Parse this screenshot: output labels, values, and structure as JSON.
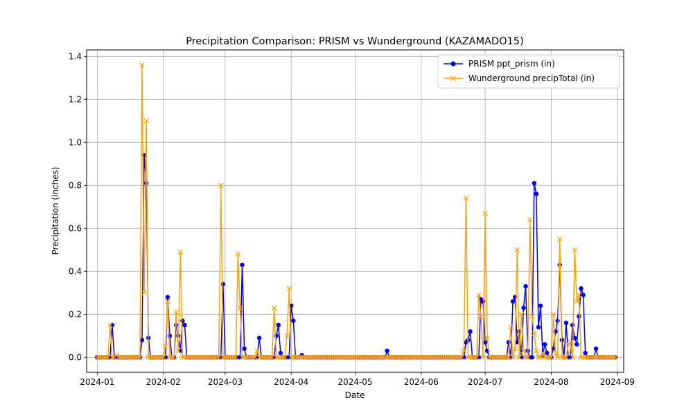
{
  "chart_data": {
    "type": "line",
    "title": "Precipitation Comparison: PRISM vs Wunderground (KAZAMADO15)",
    "xlabel": "Date",
    "ylabel": "Precipitation (inches)",
    "xlim": [
      "2023-12-27",
      "2024-09-04"
    ],
    "ylim": [
      -0.07,
      1.43
    ],
    "x_ticks": [
      "2024-01-01",
      "2024-02-01",
      "2024-03-01",
      "2024-04-01",
      "2024-05-01",
      "2024-06-01",
      "2024-07-01",
      "2024-08-01",
      "2024-09-01"
    ],
    "x_tick_labels": [
      "2024-01",
      "2024-02",
      "2024-03",
      "2024-04",
      "2024-05",
      "2024-06",
      "2024-07",
      "2024-08",
      "2024-09"
    ],
    "y_ticks": [
      0.0,
      0.2,
      0.4,
      0.6,
      0.8,
      1.0,
      1.2,
      1.4
    ],
    "y_tick_labels": [
      "0.0",
      "0.2",
      "0.4",
      "0.6",
      "0.8",
      "1.0",
      "1.2",
      "1.4"
    ],
    "grid": true,
    "legend": "top-right",
    "series": [
      {
        "name": "PRISM ppt_prism (in)",
        "color": "#0000ff",
        "marker": "circle",
        "points": [
          [
            "2024-01-07",
            0.0
          ],
          [
            "2024-01-08",
            0.15
          ],
          [
            "2024-01-09",
            0.0
          ],
          [
            "2024-01-21",
            0.0
          ],
          [
            "2024-01-22",
            0.08
          ],
          [
            "2024-01-23",
            0.94
          ],
          [
            "2024-01-24",
            0.81
          ],
          [
            "2024-01-25",
            0.09
          ],
          [
            "2024-01-26",
            0.0
          ],
          [
            "2024-02-02",
            0.0
          ],
          [
            "2024-02-03",
            0.28
          ],
          [
            "2024-02-04",
            0.1
          ],
          [
            "2024-02-05",
            0.0
          ],
          [
            "2024-02-06",
            0.0
          ],
          [
            "2024-02-07",
            0.15
          ],
          [
            "2024-02-08",
            0.1
          ],
          [
            "2024-02-09",
            0.03
          ],
          [
            "2024-02-10",
            0.17
          ],
          [
            "2024-02-11",
            0.15
          ],
          [
            "2024-02-12",
            0.0
          ],
          [
            "2024-02-27",
            0.0
          ],
          [
            "2024-02-28",
            0.0
          ],
          [
            "2024-02-29",
            0.34
          ],
          [
            "2024-03-01",
            0.0
          ],
          [
            "2024-03-07",
            0.0
          ],
          [
            "2024-03-08",
            0.0
          ],
          [
            "2024-03-09",
            0.43
          ],
          [
            "2024-03-10",
            0.04
          ],
          [
            "2024-03-11",
            0.0
          ],
          [
            "2024-03-16",
            0.0
          ],
          [
            "2024-03-17",
            0.09
          ],
          [
            "2024-03-18",
            0.0
          ],
          [
            "2024-03-24",
            0.0
          ],
          [
            "2024-03-25",
            0.1
          ],
          [
            "2024-03-26",
            0.15
          ],
          [
            "2024-03-27",
            0.02
          ],
          [
            "2024-03-28",
            0.0
          ],
          [
            "2024-03-31",
            0.0
          ],
          [
            "2024-04-01",
            0.24
          ],
          [
            "2024-04-02",
            0.17
          ],
          [
            "2024-04-03",
            0.0
          ],
          [
            "2024-04-05",
            0.0
          ],
          [
            "2024-04-06",
            0.01
          ],
          [
            "2024-04-07",
            0.0
          ],
          [
            "2024-05-15",
            0.0
          ],
          [
            "2024-05-16",
            0.03
          ],
          [
            "2024-05-17",
            0.0
          ],
          [
            "2024-06-21",
            0.0
          ],
          [
            "2024-06-22",
            0.07
          ],
          [
            "2024-06-23",
            0.08
          ],
          [
            "2024-06-24",
            0.12
          ],
          [
            "2024-06-25",
            0.0
          ],
          [
            "2024-06-28",
            0.0
          ],
          [
            "2024-06-29",
            0.27
          ],
          [
            "2024-06-30",
            0.26
          ],
          [
            "2024-07-01",
            0.07
          ],
          [
            "2024-07-02",
            0.03
          ],
          [
            "2024-07-03",
            0.0
          ],
          [
            "2024-07-11",
            0.0
          ],
          [
            "2024-07-12",
            0.07
          ],
          [
            "2024-07-13",
            0.0
          ],
          [
            "2024-07-14",
            0.26
          ],
          [
            "2024-07-15",
            0.28
          ],
          [
            "2024-07-16",
            0.07
          ],
          [
            "2024-07-17",
            0.12
          ],
          [
            "2024-07-18",
            0.0
          ],
          [
            "2024-07-19",
            0.23
          ],
          [
            "2024-07-20",
            0.33
          ],
          [
            "2024-07-21",
            0.03
          ],
          [
            "2024-07-22",
            0.0
          ],
          [
            "2024-07-23",
            0.0
          ],
          [
            "2024-07-24",
            0.81
          ],
          [
            "2024-07-25",
            0.76
          ],
          [
            "2024-07-26",
            0.14
          ],
          [
            "2024-07-27",
            0.24
          ],
          [
            "2024-07-28",
            0.01
          ],
          [
            "2024-07-29",
            0.06
          ],
          [
            "2024-07-30",
            0.02
          ],
          [
            "2024-07-31",
            0.0
          ],
          [
            "2024-08-02",
            0.04
          ],
          [
            "2024-08-03",
            0.12
          ],
          [
            "2024-08-04",
            0.17
          ],
          [
            "2024-08-05",
            0.43
          ],
          [
            "2024-08-06",
            0.08
          ],
          [
            "2024-08-07",
            0.0
          ],
          [
            "2024-08-08",
            0.16
          ],
          [
            "2024-08-09",
            0.0
          ],
          [
            "2024-08-10",
            0.0
          ],
          [
            "2024-08-11",
            0.15
          ],
          [
            "2024-08-12",
            0.09
          ],
          [
            "2024-08-13",
            0.06
          ],
          [
            "2024-08-14",
            0.19
          ],
          [
            "2024-08-15",
            0.32
          ],
          [
            "2024-08-16",
            0.29
          ],
          [
            "2024-08-17",
            0.02
          ],
          [
            "2024-08-18",
            0.0
          ],
          [
            "2024-08-21",
            0.0
          ],
          [
            "2024-08-22",
            0.04
          ],
          [
            "2024-08-23",
            0.0
          ],
          [
            "2024-08-30",
            0.0
          ],
          [
            "2024-08-31",
            0.0
          ]
        ]
      },
      {
        "name": "Wunderground precipTotal (in)",
        "color": "#ffa500",
        "marker": "x",
        "points": [
          [
            "2024-01-06",
            0.0
          ],
          [
            "2024-01-07",
            0.15
          ],
          [
            "2024-01-08",
            0.0
          ],
          [
            "2024-01-09",
            0.0
          ],
          [
            "2024-01-10",
            0.01
          ],
          [
            "2024-01-11",
            0.0
          ],
          [
            "2024-01-21",
            0.0
          ],
          [
            "2024-01-22",
            1.36
          ],
          [
            "2024-01-23",
            0.3
          ],
          [
            "2024-01-24",
            1.1
          ],
          [
            "2024-01-25",
            0.0
          ],
          [
            "2024-02-01",
            0.0
          ],
          [
            "2024-02-02",
            0.05
          ],
          [
            "2024-02-03",
            0.26
          ],
          [
            "2024-02-04",
            0.0
          ],
          [
            "2024-02-05",
            0.0
          ],
          [
            "2024-02-06",
            0.0
          ],
          [
            "2024-02-07",
            0.21
          ],
          [
            "2024-02-08",
            0.03
          ],
          [
            "2024-02-09",
            0.49
          ],
          [
            "2024-02-10",
            0.0
          ],
          [
            "2024-02-26",
            0.0
          ],
          [
            "2024-02-27",
            0.0
          ],
          [
            "2024-02-28",
            0.8
          ],
          [
            "2024-02-29",
            0.0
          ],
          [
            "2024-03-05",
            0.0
          ],
          [
            "2024-03-06",
            0.0
          ],
          [
            "2024-03-07",
            0.48
          ],
          [
            "2024-03-08",
            0.23
          ],
          [
            "2024-03-09",
            0.0
          ],
          [
            "2024-03-15",
            0.0
          ],
          [
            "2024-03-16",
            0.03
          ],
          [
            "2024-03-17",
            0.0
          ],
          [
            "2024-03-23",
            0.0
          ],
          [
            "2024-03-24",
            0.23
          ],
          [
            "2024-03-25",
            0.0
          ],
          [
            "2024-03-29",
            0.0
          ],
          [
            "2024-03-30",
            0.1
          ],
          [
            "2024-03-31",
            0.32
          ],
          [
            "2024-04-01",
            0.0
          ],
          [
            "2024-06-20",
            0.0
          ],
          [
            "2024-06-21",
            0.03
          ],
          [
            "2024-06-22",
            0.74
          ],
          [
            "2024-06-23",
            0.0
          ],
          [
            "2024-06-24",
            0.0
          ],
          [
            "2024-06-27",
            0.0
          ],
          [
            "2024-06-28",
            0.29
          ],
          [
            "2024-06-29",
            0.19
          ],
          [
            "2024-06-30",
            0.0
          ],
          [
            "2024-07-01",
            0.67
          ],
          [
            "2024-07-02",
            0.09
          ],
          [
            "2024-07-03",
            0.0
          ],
          [
            "2024-07-11",
            0.0
          ],
          [
            "2024-07-12",
            0.0
          ],
          [
            "2024-07-13",
            0.14
          ],
          [
            "2024-07-14",
            0.0
          ],
          [
            "2024-07-15",
            0.04
          ],
          [
            "2024-07-16",
            0.5
          ],
          [
            "2024-07-17",
            0.0
          ],
          [
            "2024-07-18",
            0.2
          ],
          [
            "2024-07-19",
            0.03
          ],
          [
            "2024-07-20",
            0.0
          ],
          [
            "2024-07-21",
            0.0
          ],
          [
            "2024-07-22",
            0.64
          ],
          [
            "2024-07-23",
            0.19
          ],
          [
            "2024-07-24",
            0.11
          ],
          [
            "2024-07-25",
            0.03
          ],
          [
            "2024-07-26",
            0.0
          ],
          [
            "2024-07-27",
            0.0
          ],
          [
            "2024-07-28",
            0.02
          ],
          [
            "2024-07-29",
            0.0
          ],
          [
            "2024-08-01",
            0.0
          ],
          [
            "2024-08-02",
            0.2
          ],
          [
            "2024-08-03",
            0.02
          ],
          [
            "2024-08-04",
            0.0
          ],
          [
            "2024-08-05",
            0.55
          ],
          [
            "2024-08-06",
            0.0
          ],
          [
            "2024-08-07",
            0.0
          ],
          [
            "2024-08-08",
            0.0
          ],
          [
            "2024-08-09",
            0.06
          ],
          [
            "2024-08-10",
            0.07
          ],
          [
            "2024-08-11",
            0.0
          ],
          [
            "2024-08-12",
            0.5
          ],
          [
            "2024-08-13",
            0.26
          ],
          [
            "2024-08-14",
            0.29
          ],
          [
            "2024-08-15",
            0.0
          ],
          [
            "2024-08-20",
            0.0
          ],
          [
            "2024-08-21",
            0.0
          ]
        ]
      }
    ]
  }
}
